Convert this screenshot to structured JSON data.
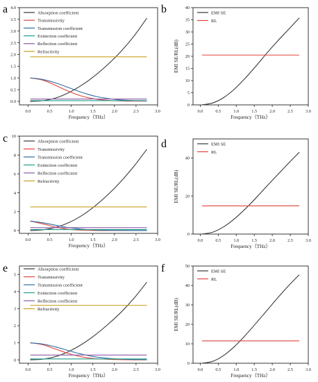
{
  "figure": {
    "panels": [
      {
        "letter": "a"
      },
      {
        "letter": "b"
      },
      {
        "letter": "c"
      },
      {
        "letter": "d"
      },
      {
        "letter": "e"
      },
      {
        "letter": "f"
      }
    ]
  },
  "chart_data": [
    {
      "panel": "a",
      "type": "line",
      "xlabel": "Frequency（THz）",
      "ylabel": "",
      "xlim": [
        -0.2,
        3.0
      ],
      "ylim": [
        -0.15,
        4.0
      ],
      "xticks": [
        "0.0",
        "0.5",
        "1.0",
        "1.5",
        "2.0",
        "2.5",
        "3.0"
      ],
      "yticks": [
        "0.0",
        "0.5",
        "1.0",
        "1.5",
        "2.0",
        "2.5",
        "3.0",
        "3.5",
        "4.0"
      ],
      "legend_position": "top-left",
      "x": [
        0.05,
        0.35,
        0.65,
        0.95,
        1.25,
        1.55,
        1.85,
        2.15,
        2.45,
        2.75
      ],
      "series": [
        {
          "name": "Absorption coefficient",
          "color": "#3a3a3a",
          "values": [
            0.0,
            0.03,
            0.15,
            0.38,
            0.7,
            1.1,
            1.58,
            2.13,
            2.78,
            3.55
          ]
        },
        {
          "name": "Transmissivity",
          "color": "#e0453a",
          "values": [
            1.0,
            0.9,
            0.67,
            0.42,
            0.22,
            0.1,
            0.04,
            0.02,
            0.01,
            0.01
          ]
        },
        {
          "name": "Transmission coefficient",
          "color": "#2f6aa1",
          "values": [
            1.0,
            0.93,
            0.78,
            0.58,
            0.38,
            0.22,
            0.12,
            0.06,
            0.03,
            0.02
          ]
        },
        {
          "name": "Extinction coefficient",
          "color": "#1f9e8a",
          "values": [
            0.03,
            0.03,
            0.03,
            0.03,
            0.03,
            0.03,
            0.03,
            0.03,
            0.03,
            0.03
          ]
        },
        {
          "name": "Reflection coefficient",
          "color": "#8a5aa8",
          "values": [
            0.1,
            0.1,
            0.1,
            0.1,
            0.1,
            0.1,
            0.1,
            0.1,
            0.1,
            0.1
          ]
        },
        {
          "name": "Refractivity",
          "color": "#c8a01e",
          "values": [
            1.9,
            1.9,
            1.9,
            1.9,
            1.9,
            1.9,
            1.9,
            1.9,
            1.9,
            1.9
          ]
        }
      ]
    },
    {
      "panel": "b",
      "type": "line",
      "xlabel": "Frequency（THz）",
      "ylabel": "EMI SE/RL(dB)",
      "xlim": [
        -0.2,
        3.0
      ],
      "ylim": [
        0,
        40
      ],
      "xticks": [
        "0.0",
        "0.5",
        "1.0",
        "1.5",
        "2.0",
        "2.5",
        "3.0"
      ],
      "yticks": [
        "0",
        "5",
        "10",
        "15",
        "20",
        "25",
        "30",
        "35",
        "40"
      ],
      "legend_position": "top-left",
      "x": [
        0.05,
        0.35,
        0.65,
        0.95,
        1.25,
        1.55,
        1.85,
        2.15,
        2.45,
        2.75
      ],
      "series": [
        {
          "name": "EMI SE",
          "color": "#3a3a3a",
          "values": [
            0.0,
            0.8,
            3.0,
            6.5,
            11.0,
            16.0,
            21.3,
            26.3,
            31.0,
            35.8
          ]
        },
        {
          "name": "RL",
          "color": "#e0453a",
          "values": [
            20.5,
            20.5,
            20.5,
            20.5,
            20.5,
            20.5,
            20.5,
            20.5,
            20.5,
            20.5
          ]
        }
      ]
    },
    {
      "panel": "c",
      "type": "line",
      "xlabel": "Frequency（THz）",
      "ylabel": "",
      "xlim": [
        -0.2,
        3.0
      ],
      "ylim": [
        -0.3,
        10
      ],
      "xticks": [
        "0.0",
        "0.5",
        "1.0",
        "1.5",
        "2.0",
        "2.5",
        "3.0"
      ],
      "yticks": [
        "0",
        "2",
        "4",
        "6",
        "8",
        "10"
      ],
      "legend_position": "top-left",
      "x": [
        0.05,
        0.35,
        0.65,
        0.95,
        1.25,
        1.55,
        1.85,
        2.15,
        2.45,
        2.75
      ],
      "series": [
        {
          "name": "Absorption coefficient",
          "color": "#3a3a3a",
          "values": [
            0.0,
            0.08,
            0.35,
            0.85,
            1.6,
            2.6,
            3.8,
            5.2,
            6.8,
            8.6
          ]
        },
        {
          "name": "Transmissivity",
          "color": "#e0453a",
          "values": [
            1.0,
            0.7,
            0.35,
            0.12,
            0.04,
            0.01,
            0.0,
            0.0,
            0.0,
            0.0
          ]
        },
        {
          "name": "Transmission coefficient",
          "color": "#2f6aa1",
          "values": [
            1.0,
            0.82,
            0.55,
            0.3,
            0.14,
            0.06,
            0.02,
            0.01,
            0.0,
            0.0
          ]
        },
        {
          "name": "Extinction coefficient",
          "color": "#1f9e8a",
          "values": [
            0.1,
            0.1,
            0.1,
            0.1,
            0.1,
            0.1,
            0.1,
            0.1,
            0.1,
            0.1
          ]
        },
        {
          "name": "Reflection coefficient",
          "color": "#8a5aa8",
          "values": [
            0.3,
            0.3,
            0.3,
            0.3,
            0.3,
            0.3,
            0.3,
            0.3,
            0.3,
            0.3
          ]
        },
        {
          "name": "Refractivity",
          "color": "#c8a01e",
          "values": [
            2.5,
            2.5,
            2.5,
            2.5,
            2.5,
            2.5,
            2.5,
            2.5,
            2.5,
            2.5
          ]
        }
      ]
    },
    {
      "panel": "d",
      "type": "line",
      "xlabel": "Frequency（THz）",
      "ylabel": "EMI SE/RL(dB)",
      "xlim": [
        -0.2,
        3.0
      ],
      "ylim": [
        0,
        50
      ],
      "xticks": [
        "0.0",
        "0.5",
        "1.0",
        "1.5",
        "2.0",
        "2.5",
        "3.0"
      ],
      "yticks": [
        "0",
        "20",
        "40"
      ],
      "legend_position": "top-left",
      "x": [
        0.05,
        0.35,
        0.65,
        0.95,
        1.25,
        1.55,
        1.85,
        2.15,
        2.45,
        2.75
      ],
      "series": [
        {
          "name": "EMI SE",
          "color": "#3a3a3a",
          "values": [
            0.0,
            1.0,
            3.8,
            8.0,
            13.2,
            19.0,
            25.2,
            31.2,
            37.2,
            43.0
          ]
        },
        {
          "name": "RL",
          "color": "#e0453a",
          "values": [
            14.8,
            14.8,
            14.8,
            14.8,
            14.8,
            14.8,
            14.8,
            14.8,
            14.8,
            14.8
          ]
        }
      ]
    },
    {
      "panel": "e",
      "type": "line",
      "xlabel": "Frequency（THz）",
      "ylabel": "",
      "xlim": [
        -0.2,
        3.0
      ],
      "ylim": [
        -0.2,
        5.5
      ],
      "xticks": [
        "0.0",
        "0.5",
        "1.0",
        "1.5",
        "2.0",
        "2.5",
        "3.0"
      ],
      "yticks": [
        "0",
        "1",
        "2",
        "3",
        "4",
        "5"
      ],
      "legend_position": "top-left",
      "x": [
        0.05,
        0.35,
        0.65,
        0.95,
        1.25,
        1.55,
        1.85,
        2.15,
        2.45,
        2.75
      ],
      "series": [
        {
          "name": "Absorption coefficient",
          "color": "#3a3a3a",
          "values": [
            0.0,
            0.04,
            0.2,
            0.5,
            0.92,
            1.45,
            2.08,
            2.78,
            3.6,
            4.55
          ]
        },
        {
          "name": "Transmissivity",
          "color": "#e0453a",
          "values": [
            1.0,
            0.88,
            0.62,
            0.36,
            0.17,
            0.07,
            0.03,
            0.01,
            0.0,
            0.0
          ]
        },
        {
          "name": "Transmission coefficient",
          "color": "#2f6aa1",
          "values": [
            1.0,
            0.92,
            0.75,
            0.53,
            0.33,
            0.18,
            0.09,
            0.04,
            0.02,
            0.01
          ]
        },
        {
          "name": "Extinction coefficient",
          "color": "#1f9e8a",
          "values": [
            0.05,
            0.05,
            0.05,
            0.05,
            0.05,
            0.05,
            0.05,
            0.05,
            0.05,
            0.05
          ]
        },
        {
          "name": "Reflection coefficient",
          "color": "#8a5aa8",
          "values": [
            0.28,
            0.28,
            0.28,
            0.28,
            0.28,
            0.28,
            0.28,
            0.28,
            0.28,
            0.28
          ]
        },
        {
          "name": "Refractivity",
          "color": "#c8a01e",
          "values": [
            3.2,
            3.2,
            3.2,
            3.2,
            3.2,
            3.2,
            3.2,
            3.2,
            3.2,
            3.2
          ]
        }
      ]
    },
    {
      "panel": "f",
      "type": "line",
      "xlabel": "Frequency（THz）",
      "ylabel": "EMI SE/RL(dB)",
      "xlim": [
        -0.2,
        3.0
      ],
      "ylim": [
        0,
        50
      ],
      "xticks": [
        "0.0",
        "0.5",
        "1.0",
        "1.5",
        "2.0",
        "2.5",
        "3.0"
      ],
      "yticks": [
        "0",
        "10",
        "20",
        "30",
        "40",
        "50"
      ],
      "legend_position": "top-left",
      "x": [
        0.05,
        0.35,
        0.65,
        0.95,
        1.25,
        1.55,
        1.85,
        2.15,
        2.45,
        2.75
      ],
      "series": [
        {
          "name": "EMI SE",
          "color": "#3a3a3a",
          "values": [
            0.0,
            1.0,
            4.0,
            8.6,
            14.3,
            20.6,
            27.1,
            33.6,
            39.8,
            45.5
          ]
        },
        {
          "name": "RL",
          "color": "#e0453a",
          "values": [
            11.5,
            11.5,
            11.5,
            11.5,
            11.5,
            11.5,
            11.5,
            11.5,
            11.5,
            11.5
          ]
        }
      ]
    }
  ]
}
